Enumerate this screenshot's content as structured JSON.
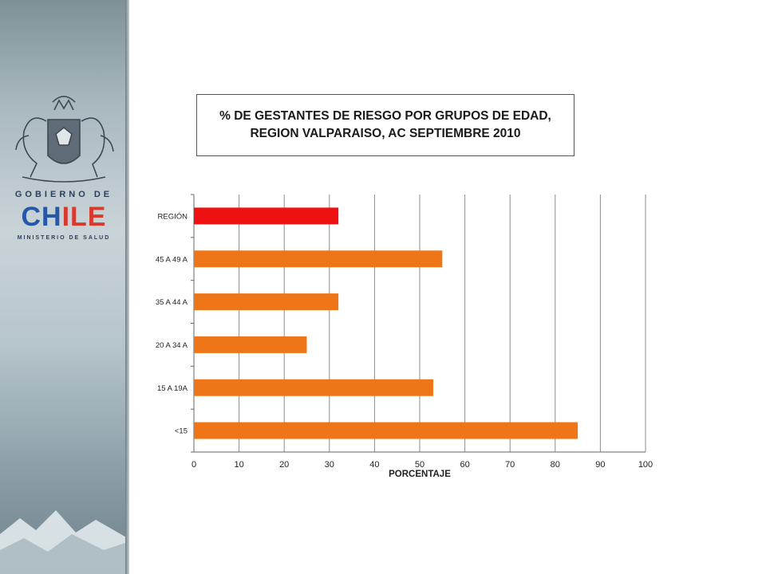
{
  "title_lines": [
    "% DE GESTANTES DE RIESGO  POR GRUPOS DE EDAD,",
    "REGION VALPARAISO, AC SEPTIEMBRE  2010"
  ],
  "logo": {
    "top_text": "GOBIERNO DE",
    "brand_a": "CH",
    "brand_b": "ILE",
    "bottom_text": "MINISTERIO DE SALUD"
  },
  "colors": {
    "bar": "#ef7618",
    "highlight": "#ee1111",
    "grid": "#8c8c8c"
  },
  "chart_data": {
    "type": "bar",
    "orientation": "horizontal",
    "categories": [
      "REGIÓN",
      "45 A 49 A",
      "35 A 44 A",
      "20 A 34 A",
      "15 A 19A",
      "<15"
    ],
    "values": [
      32,
      55,
      32,
      25,
      53,
      85
    ],
    "highlight_category": "REGIÓN",
    "xlabel": "PORCENTAJE",
    "xlim": [
      0,
      100
    ],
    "xticks": [
      "0",
      "10",
      "20",
      "30",
      "40",
      "50",
      "60",
      "70",
      "80",
      "90",
      "100"
    ],
    "grid": true
  }
}
